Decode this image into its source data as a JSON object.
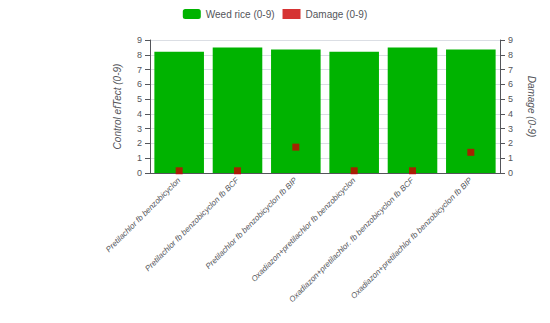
{
  "chart_data": {
    "type": "bar",
    "categories": [
      "Pretilachlor fb benzobicyclon",
      "Pretilachlor fb benzobicyclon fb BCF",
      "Pretilachlor fb benzobicyclon fb BIP",
      "Oxadiazon+pretilachlor fb benzobicyclon",
      "Oxadiazon+pretilachlor. fb benzobicyclon fb BCF",
      "Oxadiazon+pretilachlor fb benzobicyclon fb BIP"
    ],
    "series": [
      {
        "name": "Weed rice (0-9)",
        "type": "bar",
        "color": "#00b300",
        "values": [
          8.2,
          8.5,
          8.35,
          8.2,
          8.5,
          8.35
        ]
      },
      {
        "name": "Damage (0-9)",
        "type": "scatter",
        "marker": "square",
        "color": "#cc0000",
        "axis": "y2",
        "values": [
          0.15,
          0.15,
          1.75,
          0.15,
          0.15,
          1.4
        ]
      }
    ],
    "ylabel": "Control efTect (0-9)",
    "y2label": "Damage (0-9)",
    "ylim": [
      0,
      9
    ],
    "yticks": [
      0,
      1,
      2,
      3,
      4,
      5,
      6,
      7,
      8,
      9
    ],
    "y2lim": [
      0,
      9
    ],
    "y2ticks": [
      0,
      1,
      2,
      3,
      4,
      5,
      6,
      7,
      8,
      9
    ],
    "grid": true,
    "legend": "top"
  }
}
